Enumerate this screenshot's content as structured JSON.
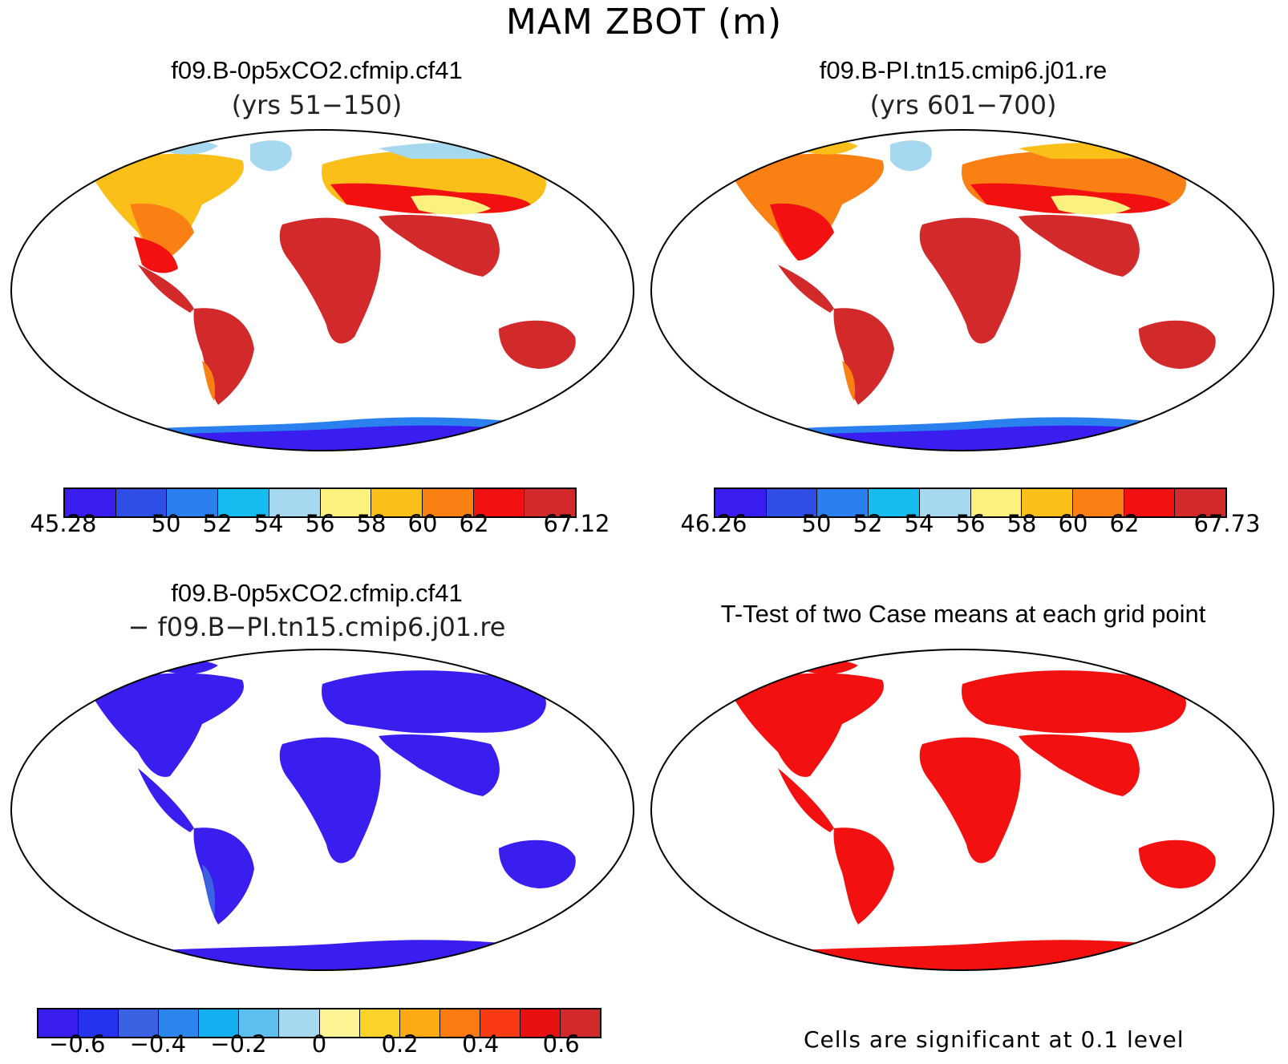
{
  "figure": {
    "title": "MAM ZBOT (m)"
  },
  "panels": {
    "top_left": {
      "title": "f09.B-0p5xCO2.cfmip.cf41",
      "subtitle": "(yrs 51−150)",
      "colorbar": {
        "colors": [
          "#3a1ef0",
          "#2e4ee6",
          "#2a80ee",
          "#14bcf0",
          "#a6d8f0",
          "#fcf07e",
          "#fbbf1a",
          "#fb8014",
          "#f21010",
          "#d22a2a"
        ],
        "labels": [
          "45.28",
          "50",
          "52",
          "54",
          "56",
          "58",
          "60",
          "62",
          "67.12"
        ]
      }
    },
    "top_right": {
      "title": "f09.B-PI.tn15.cmip6.j01.re",
      "subtitle": "(yrs 601−700)",
      "colorbar": {
        "colors": [
          "#3a1ef0",
          "#2e4ee6",
          "#2a80ee",
          "#14bcf0",
          "#a6d8f0",
          "#fcf07e",
          "#fbbf1a",
          "#fb8014",
          "#f21010",
          "#d22a2a"
        ],
        "labels": [
          "46.26",
          "50",
          "52",
          "54",
          "56",
          "58",
          "60",
          "62",
          "67.73"
        ]
      }
    },
    "bottom_left": {
      "title": "f09.B-0p5xCO2.cfmip.cf41",
      "subtitle": "− f09.B−PI.tn15.cmip6.j01.re",
      "colorbar": {
        "colors": [
          "#3a1ef0",
          "#2433ee",
          "#3a62e2",
          "#2a86ec",
          "#12aef0",
          "#5cbfee",
          "#a6d8f0",
          "#fcf494",
          "#fbd22a",
          "#fbaa12",
          "#fb7a12",
          "#fa3a12",
          "#e81010",
          "#d22a2a"
        ],
        "labels": [
          "−0.6",
          "−0.4",
          "−0.2",
          "0",
          "0.2",
          "0.4",
          "0.6"
        ]
      }
    },
    "bottom_right": {
      "title": "T-Test of two Case means at each grid point",
      "note": "Cells are significant at 0.1 level"
    }
  }
}
